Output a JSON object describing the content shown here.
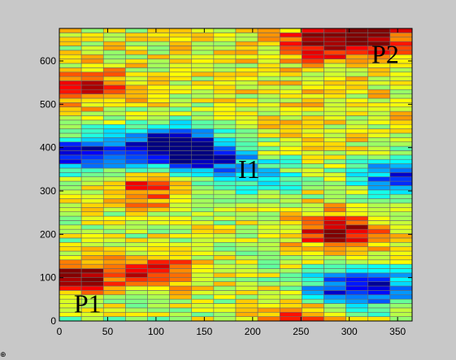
{
  "window": {
    "background": "#c8c8c8",
    "corner_icon": "crosshair-icon",
    "corner_glyph": "⊕"
  },
  "chart_data": {
    "type": "heatmap",
    "title": "",
    "xlabel": "",
    "ylabel": "",
    "xlim": [
      0,
      365
    ],
    "ylim": [
      0,
      675
    ],
    "x_ticks": [
      0,
      50,
      100,
      150,
      200,
      250,
      300,
      350
    ],
    "y_ticks": [
      0,
      100,
      200,
      300,
      400,
      500,
      600
    ],
    "columns": 16,
    "rows": 67,
    "colormap": "jet",
    "grid": false,
    "annotations": [
      {
        "text": "P1",
        "x": 15,
        "y": 20
      },
      {
        "text": "P2",
        "x": 323,
        "y": 595
      },
      {
        "text": "I1",
        "x": 185,
        "y": 330
      }
    ],
    "field_description": {
      "low_regions": [
        {
          "x": 145,
          "y": 382,
          "value": 0.02
        },
        {
          "x": 110,
          "y": 410,
          "value": 0.08
        },
        {
          "x": 30,
          "y": 385,
          "value": 0.05
        },
        {
          "x": 355,
          "y": 335,
          "value": 0.08
        },
        {
          "x": 290,
          "y": 70,
          "value": 0.2
        },
        {
          "x": 335,
          "y": 80,
          "value": 0.2
        },
        {
          "x": 210,
          "y": 335,
          "value": 0.3
        }
      ],
      "high_regions": [
        {
          "x": 20,
          "y": 100,
          "value": 0.97
        },
        {
          "x": 100,
          "y": 115,
          "value": 0.88
        },
        {
          "x": 290,
          "y": 205,
          "value": 0.93
        },
        {
          "x": 320,
          "y": 660,
          "value": 0.98
        },
        {
          "x": 30,
          "y": 540,
          "value": 0.82
        },
        {
          "x": 270,
          "y": 640,
          "value": 0.85
        },
        {
          "x": 90,
          "y": 305,
          "value": 0.82
        },
        {
          "x": 245,
          "y": 15,
          "value": 0.85
        }
      ],
      "base_value": 0.55
    }
  }
}
